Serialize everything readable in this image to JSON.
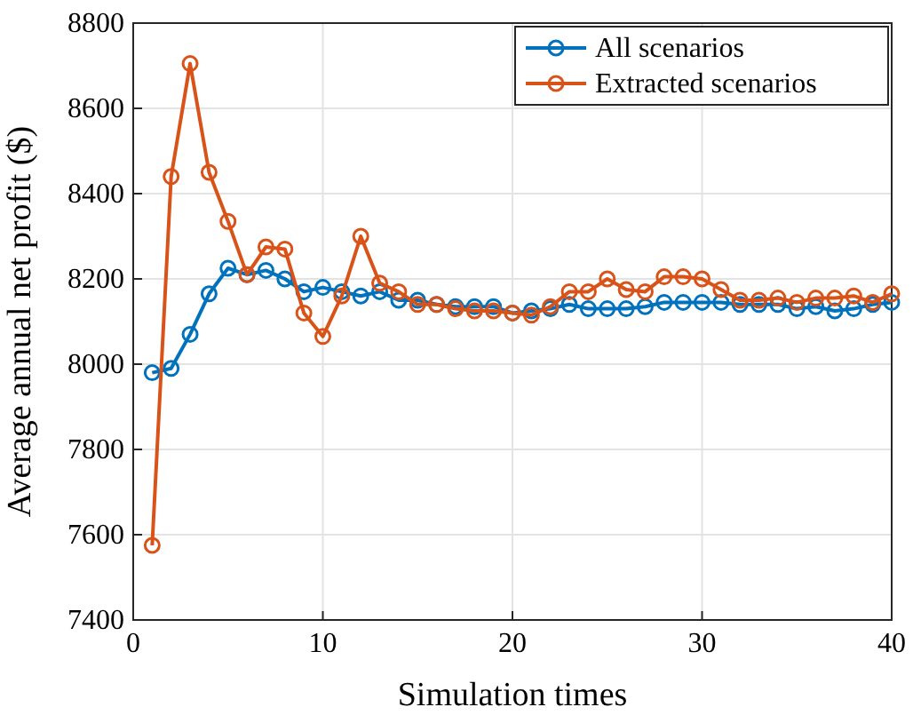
{
  "chart_data": {
    "type": "line",
    "xlabel": "Simulation times",
    "ylabel": "Average annual net profit ($)",
    "x": [
      1,
      2,
      3,
      4,
      5,
      6,
      7,
      8,
      9,
      10,
      11,
      12,
      13,
      14,
      15,
      16,
      17,
      18,
      19,
      20,
      21,
      22,
      23,
      24,
      25,
      26,
      27,
      28,
      29,
      30,
      31,
      32,
      33,
      34,
      35,
      36,
      37,
      38,
      39,
      40
    ],
    "series": [
      {
        "name": "All scenarios",
        "color": "#0072bd",
        "values": [
          7980,
          7990,
          8070,
          8165,
          8225,
          8210,
          8220,
          8200,
          8170,
          8180,
          8170,
          8160,
          8170,
          8150,
          8150,
          8140,
          8135,
          8135,
          8135,
          8120,
          8125,
          8130,
          8140,
          8130,
          8130,
          8130,
          8135,
          8145,
          8145,
          8145,
          8145,
          8140,
          8140,
          8140,
          8130,
          8135,
          8125,
          8130,
          8140,
          8145
        ]
      },
      {
        "name": "Extracted scenarios",
        "color": "#d95319",
        "values": [
          7575,
          8440,
          8705,
          8450,
          8335,
          8210,
          8275,
          8270,
          8120,
          8065,
          8160,
          8300,
          8190,
          8170,
          8140,
          8140,
          8130,
          8125,
          8125,
          8120,
          8115,
          8135,
          8170,
          8170,
          8200,
          8175,
          8170,
          8205,
          8205,
          8200,
          8175,
          8150,
          8150,
          8155,
          8145,
          8155,
          8155,
          8160,
          8145,
          8165
        ]
      }
    ],
    "xlim": [
      0,
      40
    ],
    "xticks": [
      0,
      10,
      20,
      30,
      40
    ],
    "ylim": [
      7400,
      8800
    ],
    "yticks": [
      7400,
      7600,
      7800,
      8000,
      8200,
      8400,
      8600,
      8800
    ],
    "grid": true,
    "legend": "top right",
    "marker": "circle",
    "line_style": "solid"
  }
}
